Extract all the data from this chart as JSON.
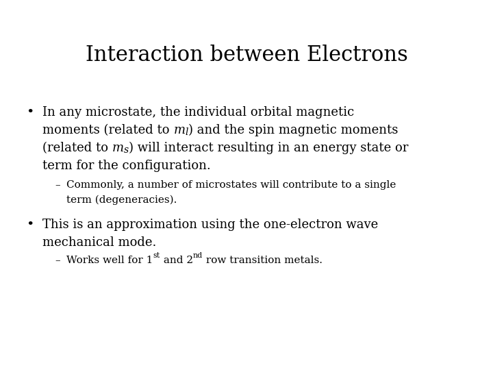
{
  "title": "Interaction between Electrons",
  "background_color": "#ffffff",
  "text_color": "#000000",
  "title_fontsize": 22,
  "title_font": "DejaVu Serif",
  "body_fontsize": 13,
  "body_font": "DejaVu Serif",
  "sub_fontsize": 11,
  "sub_font": "DejaVu Serif",
  "bullet1_line1": "In any microstate, the individual orbital magnetic",
  "bullet1_line2_pre": "moments (related to ",
  "bullet1_ml": "m",
  "bullet1_ml_sub": "l",
  "bullet1_line2_post": ") and the spin magnetic moments",
  "bullet1_line3_pre": "(related to ",
  "bullet1_ms": "m",
  "bullet1_ms_sub": "s",
  "bullet1_line3_post": ") will interact resulting in an energy state or",
  "bullet1_line4": "term for the configuration.",
  "dash1_line1": "Commonly, a number of microstates will contribute to a single",
  "dash1_line2": "term (degeneracies).",
  "bullet2_line1": "This is an approximation using the one-electron wave",
  "bullet2_line2": "mechanical mode.",
  "dash2_pre": "Works well for 1",
  "dash2_super1": "st",
  "dash2_mid": " and 2",
  "dash2_super2": "nd",
  "dash2_post": " row transition metals.",
  "fig_width": 7.2,
  "fig_height": 5.4,
  "dpi": 100
}
